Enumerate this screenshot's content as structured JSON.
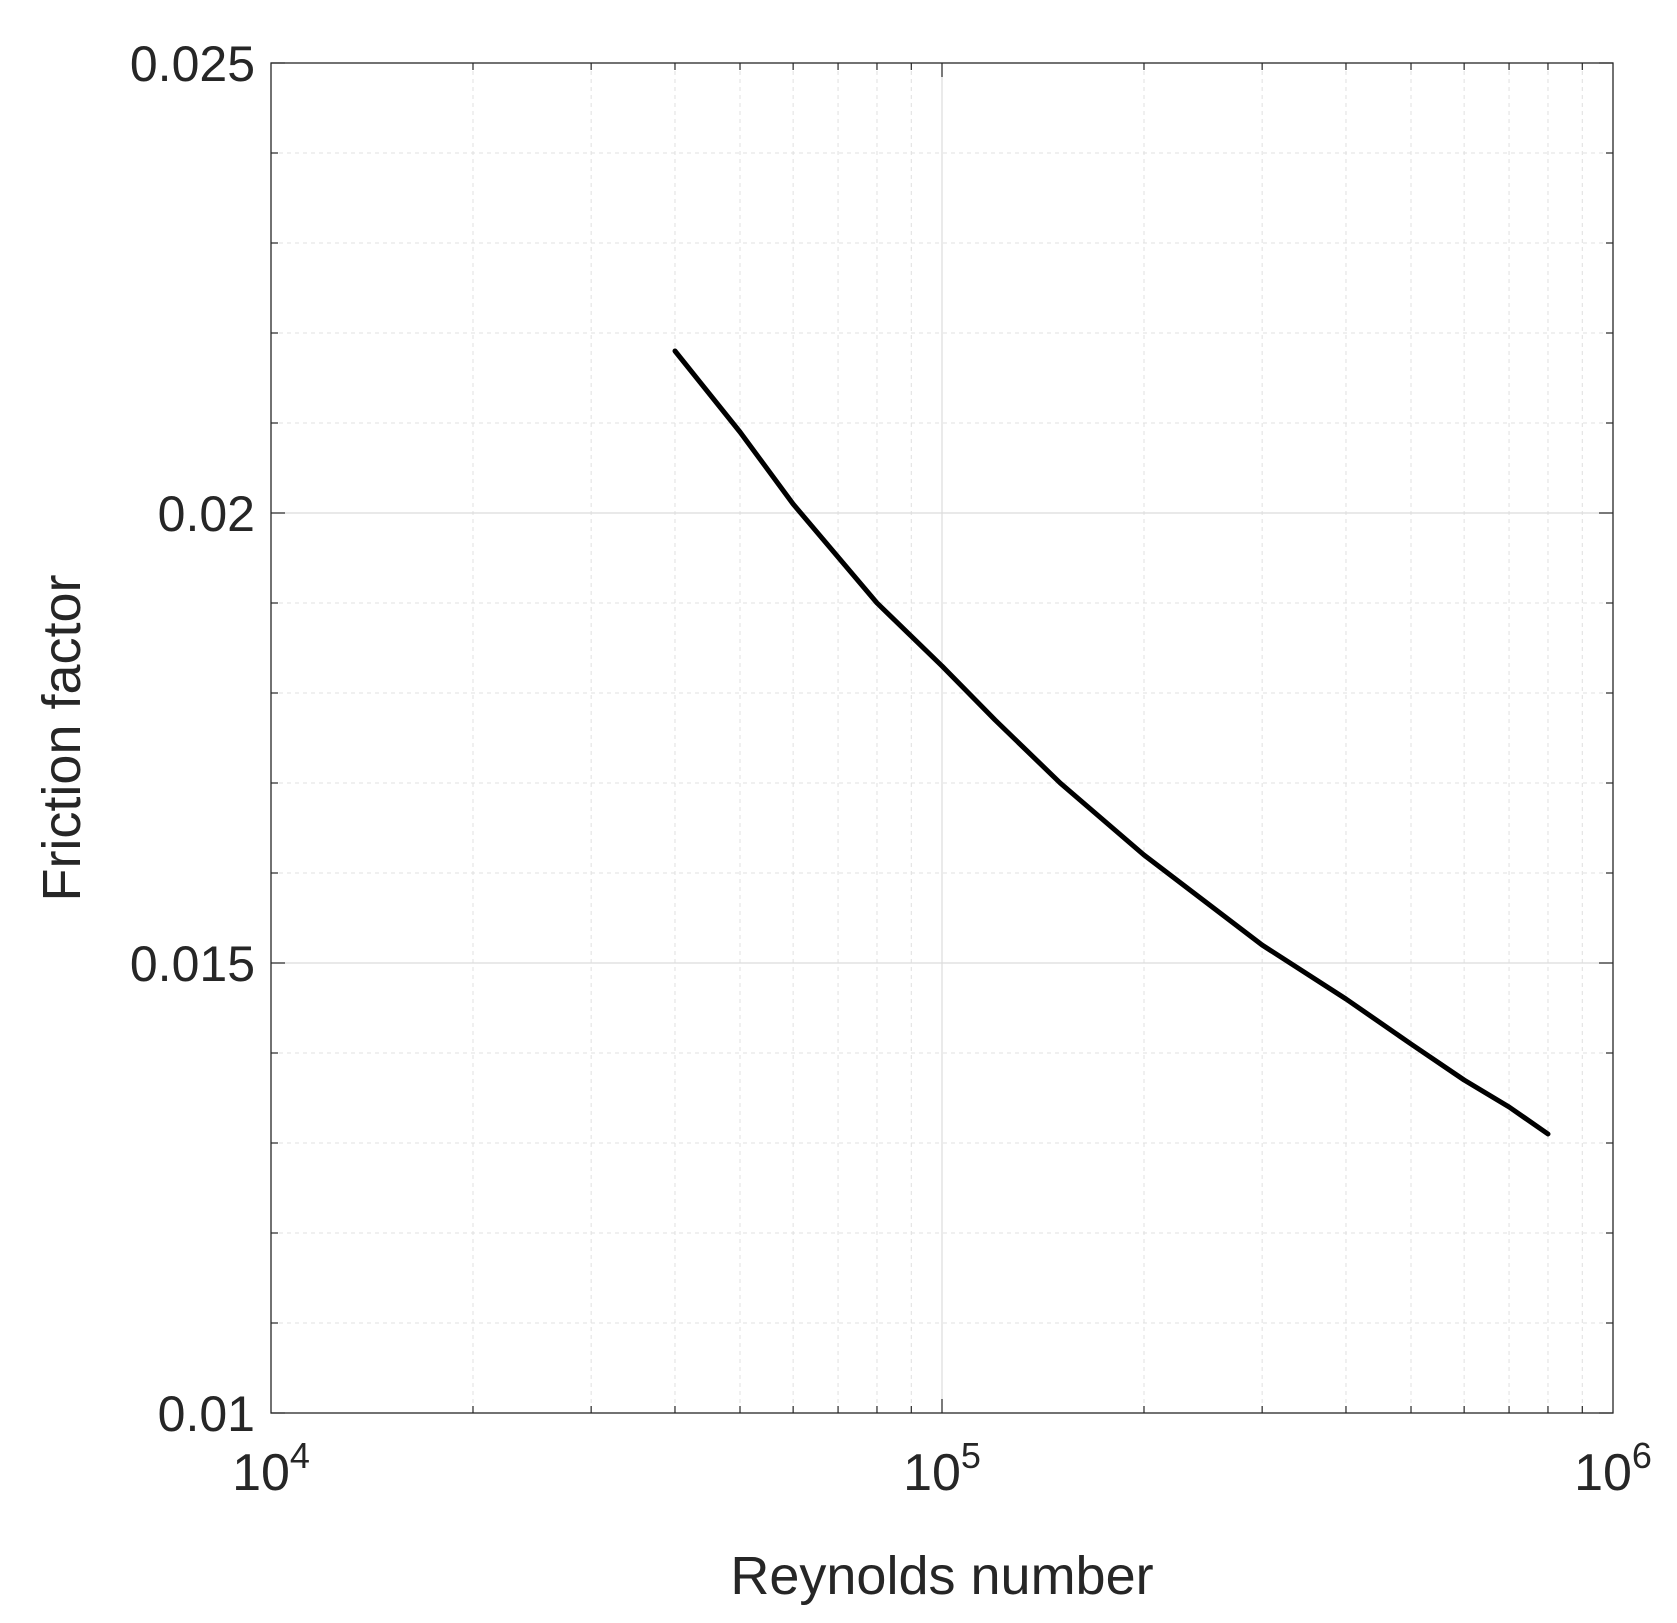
{
  "chart_data": {
    "type": "line",
    "xlabel": "Reynolds number",
    "ylabel": "Friction factor",
    "xscale": "log",
    "xlim": [
      10000,
      1000000
    ],
    "ylim": [
      0.01,
      0.025
    ],
    "grid": true,
    "minor_grid": true,
    "line_color": "#000000",
    "x_ticks": [
      {
        "base": "10",
        "exp": "4",
        "value": 10000
      },
      {
        "base": "10",
        "exp": "5",
        "value": 100000
      },
      {
        "base": "10",
        "exp": "6",
        "value": 1000000
      }
    ],
    "y_ticks": [
      "0.01",
      "0.015",
      "0.02",
      "0.025"
    ],
    "series": [
      {
        "x": [
          40000,
          50000,
          60000,
          80000,
          100000,
          120000,
          150000,
          200000,
          300000,
          400000,
          500000,
          600000,
          700000,
          800000
        ],
        "y": [
          0.0218,
          0.0209,
          0.0201,
          0.019,
          0.0183,
          0.0177,
          0.017,
          0.0162,
          0.0152,
          0.0146,
          0.0141,
          0.0137,
          0.0134,
          0.0131
        ]
      }
    ]
  }
}
